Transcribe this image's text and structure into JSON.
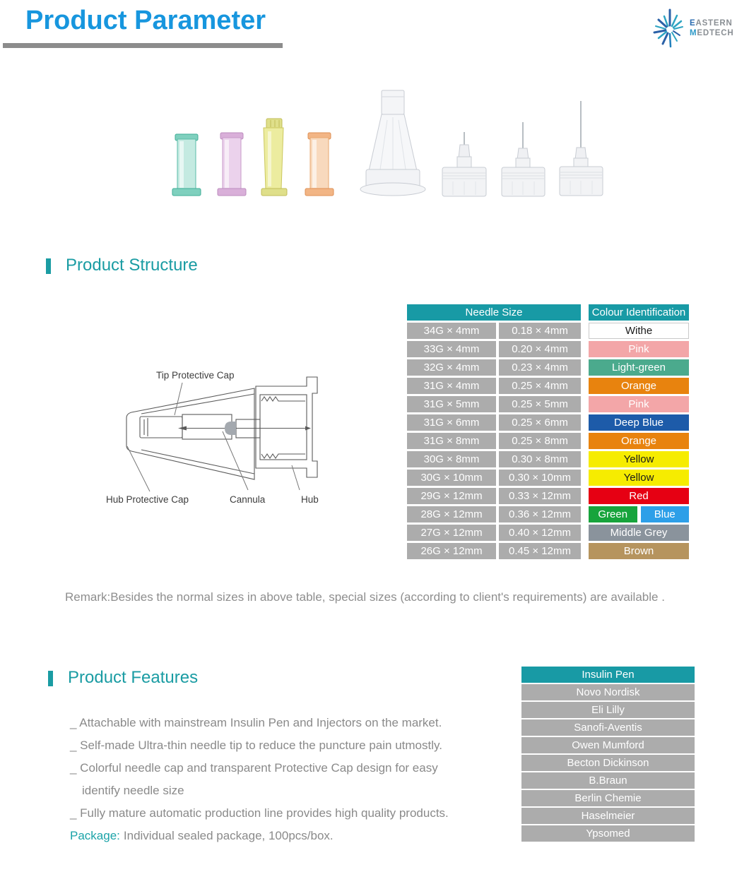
{
  "page": {
    "title": "Product Parameter"
  },
  "logo": {
    "name_top": "EASTERN",
    "name_bottom": "MEDTECH"
  },
  "structure_section": {
    "title": "Product Structure"
  },
  "diagram_labels": {
    "tip_cap": "Tip Protective Cap",
    "hub_cap": "Hub Protective Cap",
    "cannula": "Cannula",
    "hub": "Hub"
  },
  "needle_table": {
    "header_needle_size": "Needle Size",
    "header_colour": "Colour Identification",
    "rows": [
      {
        "gauge": "34G × 4mm",
        "size": "0.18 × 4mm",
        "colors": [
          {
            "label": "Withe",
            "bg": "#FFFFFF",
            "fg": "#1A1A1A",
            "border": true
          }
        ]
      },
      {
        "gauge": "33G × 4mm",
        "size": "0.20 × 4mm",
        "colors": [
          {
            "label": "Pink",
            "bg": "#F3A6A8",
            "fg": "#FFFFFF"
          }
        ]
      },
      {
        "gauge": "32G × 4mm",
        "size": "0.23 × 4mm",
        "colors": [
          {
            "label": "Light-green",
            "bg": "#4BAA8D",
            "fg": "#FFFFFF"
          }
        ]
      },
      {
        "gauge": "31G × 4mm",
        "size": "0.25 × 4mm",
        "colors": [
          {
            "label": "Orange",
            "bg": "#E8830E",
            "fg": "#FFFFFF"
          }
        ]
      },
      {
        "gauge": "31G × 5mm",
        "size": "0.25 × 5mm",
        "colors": [
          {
            "label": "Pink",
            "bg": "#F3A6A8",
            "fg": "#FFFFFF"
          }
        ]
      },
      {
        "gauge": "31G × 6mm",
        "size": "0.25 × 6mm",
        "colors": [
          {
            "label": "Deep Blue",
            "bg": "#1D5BA9",
            "fg": "#FFFFFF"
          }
        ]
      },
      {
        "gauge": "31G × 8mm",
        "size": "0.25 × 8mm",
        "colors": [
          {
            "label": "Orange",
            "bg": "#E8830E",
            "fg": "#FFFFFF"
          }
        ]
      },
      {
        "gauge": "30G × 8mm",
        "size": "0.30 × 8mm",
        "colors": [
          {
            "label": "Yellow",
            "bg": "#F6EC00",
            "fg": "#1A1A1A"
          }
        ]
      },
      {
        "gauge": "30G × 10mm",
        "size": "0.30 × 10mm",
        "colors": [
          {
            "label": "Yellow",
            "bg": "#F6EC00",
            "fg": "#1A1A1A"
          }
        ]
      },
      {
        "gauge": "29G × 12mm",
        "size": "0.33 × 12mm",
        "colors": [
          {
            "label": "Red",
            "bg": "#E60013",
            "fg": "#FFFFFF"
          }
        ]
      },
      {
        "gauge": "28G × 12mm",
        "size": "0.36 × 12mm",
        "colors": [
          {
            "label": "Green",
            "bg": "#17A43C",
            "fg": "#FFFFFF"
          },
          {
            "label": "Blue",
            "bg": "#2D9FE8",
            "fg": "#FFFFFF"
          }
        ]
      },
      {
        "gauge": "27G × 12mm",
        "size": "0.40 × 12mm",
        "colors": [
          {
            "label": "Middle Grey",
            "bg": "#8A939C",
            "fg": "#FFFFFF"
          }
        ]
      },
      {
        "gauge": "26G × 12mm",
        "size": "0.45 × 12mm",
        "colors": [
          {
            "label": "Brown",
            "bg": "#B6945E",
            "fg": "#FFFFFF"
          }
        ]
      }
    ]
  },
  "remark": "Remark:Besides  the normal sizes in above table, special sizes (according to client's requirements) are  available .",
  "features_section": {
    "title": "Product Features",
    "items": [
      {
        "text": "_ Attachable with mainstream Insulin Pen and Injectors on the market.",
        "indent": false
      },
      {
        "text": "_ Self-made Ultra-thin needle tip to reduce the puncture pain utmostly.",
        "indent": false
      },
      {
        "text": "_ Colorful needle cap and transparent Protective Cap design for easy",
        "indent": false
      },
      {
        "text": "identify needle size",
        "indent": true
      },
      {
        "text": "_ Fully mature automatic production line provides high quality products.",
        "indent": false
      }
    ],
    "package_label": "Package:",
    "package_text": "Individual sealed package, 100pcs/box."
  },
  "insulin_pen_table": {
    "header": "Insulin Pen",
    "rows": [
      "Novo Nordisk",
      "Eli Lilly",
      "Sanofi-Aventis",
      "Owen Mumford",
      "Becton Dickinson",
      "B.Braun",
      "Berlin Chemie",
      "Haselmeier",
      "Ypsomed"
    ]
  },
  "colors": {
    "accent_blue": "#1796DE",
    "accent_teal": "#1A9CA3",
    "table_header_teal": "#189AA5",
    "table_row_grey": "#ACACAC",
    "underline_grey": "#8C8C8C",
    "body_text_grey": "#8A8A8A",
    "package_label_teal": "#1BA3A8"
  }
}
